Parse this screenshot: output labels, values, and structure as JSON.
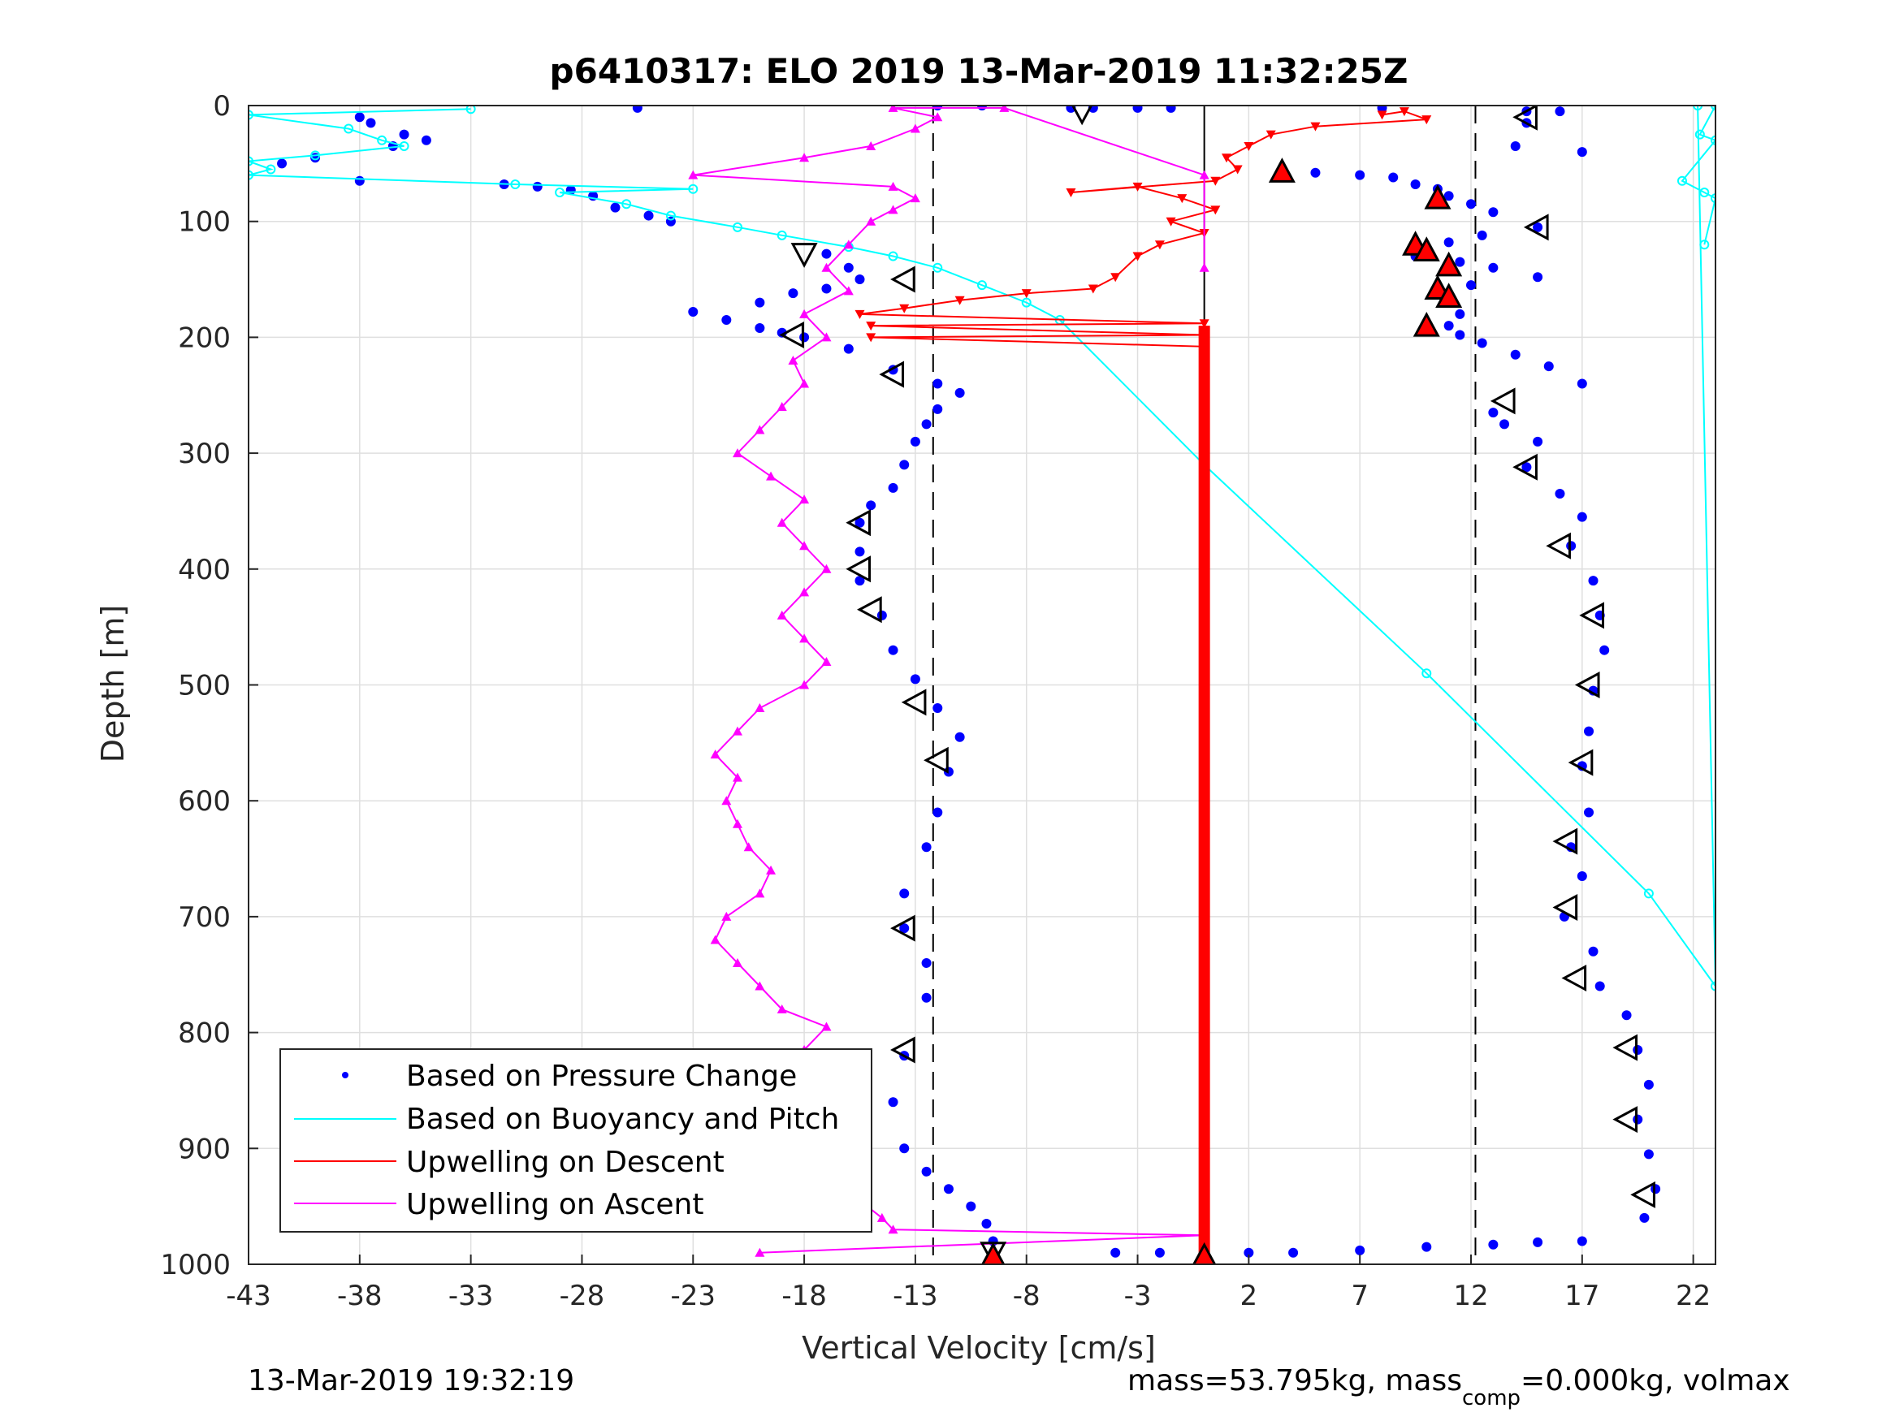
{
  "chart_data": {
    "type": "scatter",
    "title": "p6410317: ELO 2019 13-Mar-2019 11:32:25Z",
    "xlabel": "Vertical Velocity [cm/s]",
    "ylabel": "Depth [m]",
    "xlim": [
      -43,
      23
    ],
    "ylim": [
      0,
      1000
    ],
    "y_reversed": true,
    "grid": true,
    "xticks": [
      -43,
      -38,
      -33,
      -28,
      -23,
      -18,
      -13,
      -8,
      -3,
      2,
      7,
      12,
      17,
      22
    ],
    "yticks": [
      0,
      100,
      200,
      300,
      400,
      500,
      600,
      700,
      800,
      900,
      1000
    ],
    "reference_lines": [
      {
        "x": 0,
        "style": "solid"
      },
      {
        "x": -12.2,
        "style": "dashed"
      },
      {
        "x": 12.2,
        "style": "dashed"
      }
    ],
    "legend": {
      "placement": "bottom-left",
      "entries": [
        {
          "label": "Based on Pressure Change",
          "color": "#0000ff",
          "marker": "dot"
        },
        {
          "label": "Based on Buoyancy and Pitch",
          "color": "#00ffff",
          "marker": "line"
        },
        {
          "label": "Upwelling on Descent",
          "color": "#ff0000",
          "marker": "line"
        },
        {
          "label": "Upwelling on Ascent",
          "color": "#ff00ff",
          "marker": "line"
        }
      ]
    },
    "series": [
      {
        "name": "Based on Pressure Change",
        "color": "#0000ff",
        "points": [
          [
            -25.5,
            2
          ],
          [
            -12,
            0
          ],
          [
            -10,
            0
          ],
          [
            -38,
            10
          ],
          [
            -37.5,
            15
          ],
          [
            -36,
            25
          ],
          [
            -35,
            30
          ],
          [
            -36.5,
            35
          ],
          [
            -40,
            45
          ],
          [
            -41.5,
            50
          ],
          [
            -38,
            65
          ],
          [
            -31.5,
            68
          ],
          [
            -30,
            70
          ],
          [
            -28.5,
            73
          ],
          [
            -27.5,
            78
          ],
          [
            -26.5,
            88
          ],
          [
            -25,
            95
          ],
          [
            -24,
            100
          ],
          [
            -17,
            128
          ],
          [
            -16,
            140
          ],
          [
            -15.5,
            150
          ],
          [
            -17,
            158
          ],
          [
            -18.5,
            162
          ],
          [
            -20,
            170
          ],
          [
            -23,
            178
          ],
          [
            -21.5,
            185
          ],
          [
            -20,
            192
          ],
          [
            -19,
            196
          ],
          [
            -18,
            200
          ],
          [
            -16,
            210
          ],
          [
            -14,
            228
          ],
          [
            -12,
            240
          ],
          [
            -11,
            248
          ],
          [
            -12,
            262
          ],
          [
            -12.5,
            275
          ],
          [
            -13,
            290
          ],
          [
            -13.5,
            310
          ],
          [
            -14,
            330
          ],
          [
            -15,
            345
          ],
          [
            -15.5,
            360
          ],
          [
            -15.5,
            385
          ],
          [
            -15.5,
            410
          ],
          [
            -14.5,
            440
          ],
          [
            -14,
            470
          ],
          [
            -13,
            495
          ],
          [
            -12,
            520
          ],
          [
            -11,
            545
          ],
          [
            -11.5,
            575
          ],
          [
            -12,
            610
          ],
          [
            -12.5,
            640
          ],
          [
            -13.5,
            680
          ],
          [
            -13.5,
            710
          ],
          [
            -12.5,
            740
          ],
          [
            -12.5,
            770
          ],
          [
            -13.5,
            820
          ],
          [
            -14,
            860
          ],
          [
            -13.5,
            900
          ],
          [
            -12.5,
            920
          ],
          [
            -11.5,
            935
          ],
          [
            -10.5,
            950
          ],
          [
            -9.8,
            965
          ],
          [
            -9.5,
            980
          ],
          [
            -9.5,
            990
          ],
          [
            -4,
            990
          ],
          [
            -2,
            990
          ],
          [
            2,
            990
          ],
          [
            4,
            990
          ],
          [
            7,
            988
          ],
          [
            10,
            985
          ],
          [
            13,
            983
          ],
          [
            15,
            981
          ],
          [
            17,
            980
          ],
          [
            -6,
            2
          ],
          [
            -5,
            2
          ],
          [
            -3,
            2
          ],
          [
            -1.5,
            2
          ],
          [
            8,
            2
          ],
          [
            3.5,
            57
          ],
          [
            5,
            58
          ],
          [
            7,
            60
          ],
          [
            8.5,
            62
          ],
          [
            9.5,
            68
          ],
          [
            10.5,
            72
          ],
          [
            11,
            78
          ],
          [
            12,
            85
          ],
          [
            13,
            92
          ],
          [
            15,
            105
          ],
          [
            12.5,
            112
          ],
          [
            11,
            118
          ],
          [
            9.5,
            125
          ],
          [
            9.5,
            130
          ],
          [
            11.5,
            135
          ],
          [
            13,
            140
          ],
          [
            15,
            148
          ],
          [
            12,
            155
          ],
          [
            10.5,
            160
          ],
          [
            11,
            170
          ],
          [
            11.5,
            180
          ],
          [
            11,
            190
          ],
          [
            11.5,
            198
          ],
          [
            12.5,
            205
          ],
          [
            14,
            215
          ],
          [
            15.5,
            225
          ],
          [
            17,
            240
          ],
          [
            13,
            265
          ],
          [
            13.5,
            275
          ],
          [
            15,
            290
          ],
          [
            14.5,
            312
          ],
          [
            16,
            335
          ],
          [
            17,
            355
          ],
          [
            16.5,
            380
          ],
          [
            17.5,
            410
          ],
          [
            17.8,
            440
          ],
          [
            18,
            470
          ],
          [
            17.5,
            505
          ],
          [
            17.3,
            540
          ],
          [
            17,
            570
          ],
          [
            17.3,
            610
          ],
          [
            16.5,
            640
          ],
          [
            17,
            665
          ],
          [
            16.2,
            700
          ],
          [
            17.5,
            730
          ],
          [
            17.8,
            760
          ],
          [
            19,
            785
          ],
          [
            19.5,
            815
          ],
          [
            20,
            845
          ],
          [
            19.5,
            875
          ],
          [
            20,
            905
          ],
          [
            20.3,
            935
          ],
          [
            19.8,
            960
          ],
          [
            14.5,
            15
          ],
          [
            14,
            35
          ],
          [
            17,
            40
          ],
          [
            14.5,
            5
          ],
          [
            16,
            5
          ]
        ]
      },
      {
        "name": "Based on Buoyancy and Pitch",
        "color": "#00ffff",
        "points": [
          [
            -33,
            3
          ],
          [
            -43,
            8
          ],
          [
            -38.5,
            20
          ],
          [
            -37,
            30
          ],
          [
            -36,
            35
          ],
          [
            -40,
            43
          ],
          [
            -43,
            48
          ],
          [
            -42,
            55
          ],
          [
            -43,
            60
          ],
          [
            -31,
            68
          ],
          [
            -23,
            72
          ],
          [
            -29,
            75
          ],
          [
            -26,
            85
          ],
          [
            -24,
            95
          ],
          [
            -21,
            105
          ],
          [
            -19,
            112
          ],
          [
            -16,
            122
          ],
          [
            -14,
            130
          ],
          [
            -12,
            140
          ],
          [
            -10,
            155
          ],
          [
            -8,
            170
          ],
          [
            -6.5,
            185
          ],
          [
            0,
            310
          ],
          [
            10,
            490
          ],
          [
            20,
            680
          ],
          [
            23,
            760
          ],
          [
            22.2,
            0
          ],
          [
            23,
            0
          ],
          [
            22.3,
            25
          ],
          [
            23,
            30
          ],
          [
            21.5,
            65
          ],
          [
            22.5,
            75
          ],
          [
            23,
            80
          ],
          [
            22.5,
            120
          ]
        ]
      },
      {
        "name": "Upwelling on Descent",
        "color": "#ff0000",
        "points": [
          [
            8,
            8
          ],
          [
            9,
            5
          ],
          [
            10,
            12
          ],
          [
            5,
            18
          ],
          [
            3,
            25
          ],
          [
            2,
            35
          ],
          [
            1,
            45
          ],
          [
            1.5,
            55
          ],
          [
            0.5,
            65
          ],
          [
            -6,
            75
          ],
          [
            -3,
            70
          ],
          [
            -1,
            80
          ],
          [
            0.5,
            90
          ],
          [
            -1.5,
            100
          ],
          [
            0,
            110
          ],
          [
            -2,
            120
          ],
          [
            -3,
            130
          ],
          [
            -4,
            148
          ],
          [
            -5,
            158
          ],
          [
            -8,
            162
          ],
          [
            -11,
            168
          ],
          [
            -13.5,
            175
          ],
          [
            -15.5,
            180
          ],
          [
            0,
            188
          ],
          [
            -15,
            190
          ],
          [
            0,
            198
          ],
          [
            -15,
            200
          ],
          [
            0,
            208
          ],
          [
            0,
            1000
          ]
        ]
      },
      {
        "name": "Upwelling on Ascent",
        "color": "#ff00ff",
        "points": [
          [
            -20,
            990
          ],
          [
            0,
            975
          ],
          [
            -14,
            970
          ],
          [
            -14.5,
            960
          ],
          [
            -15.5,
            945
          ],
          [
            -17,
            930
          ],
          [
            -18,
            915
          ],
          [
            -19,
            900
          ],
          [
            -20,
            880
          ],
          [
            -19.5,
            860
          ],
          [
            -20,
            840
          ],
          [
            -18,
            815
          ],
          [
            -17,
            795
          ],
          [
            -19,
            780
          ],
          [
            -20,
            760
          ],
          [
            -21,
            740
          ],
          [
            -22,
            720
          ],
          [
            -21.5,
            700
          ],
          [
            -20,
            680
          ],
          [
            -19.5,
            660
          ],
          [
            -20.5,
            640
          ],
          [
            -21,
            620
          ],
          [
            -21.5,
            600
          ],
          [
            -21,
            580
          ],
          [
            -22,
            560
          ],
          [
            -21,
            540
          ],
          [
            -20,
            520
          ],
          [
            -18,
            500
          ],
          [
            -17,
            480
          ],
          [
            -18,
            460
          ],
          [
            -19,
            440
          ],
          [
            -18,
            420
          ],
          [
            -17,
            400
          ],
          [
            -18,
            380
          ],
          [
            -19,
            360
          ],
          [
            -18,
            340
          ],
          [
            -19.5,
            320
          ],
          [
            -21,
            300
          ],
          [
            -20,
            280
          ],
          [
            -19,
            260
          ],
          [
            -18,
            240
          ],
          [
            -18.5,
            220
          ],
          [
            -17,
            200
          ],
          [
            -18,
            180
          ],
          [
            -16,
            160
          ],
          [
            -17,
            140
          ],
          [
            -16,
            120
          ],
          [
            -15,
            100
          ],
          [
            -14,
            90
          ],
          [
            -13,
            80
          ],
          [
            -14,
            70
          ],
          [
            -23,
            60
          ],
          [
            -18,
            45
          ],
          [
            -15,
            35
          ],
          [
            -13,
            20
          ],
          [
            -12,
            10
          ],
          [
            -14,
            2
          ],
          [
            -9,
            2
          ],
          [
            0,
            60
          ],
          [
            0,
            140
          ]
        ]
      }
    ],
    "special_markers": [
      {
        "type": "triangle-down-open",
        "points": [
          [
            -5.5,
            5
          ],
          [
            -18,
            128
          ],
          [
            -9.5,
            990
          ]
        ]
      },
      {
        "type": "triangle-left-open",
        "points": [
          [
            -13.5,
            150
          ],
          [
            -18.5,
            198
          ],
          [
            -14,
            232
          ],
          [
            -15.5,
            360
          ],
          [
            -15.5,
            400
          ],
          [
            -15,
            435
          ],
          [
            -13,
            515
          ],
          [
            -12,
            565
          ],
          [
            -13.5,
            710
          ],
          [
            -13.5,
            815
          ],
          [
            14.5,
            10
          ],
          [
            15,
            105
          ],
          [
            13.5,
            255
          ],
          [
            14.5,
            312
          ],
          [
            16,
            380
          ],
          [
            17.5,
            440
          ],
          [
            17.3,
            500
          ],
          [
            17,
            567
          ],
          [
            16.3,
            635
          ],
          [
            16.3,
            692
          ],
          [
            16.7,
            753
          ],
          [
            19,
            813
          ],
          [
            19,
            875
          ],
          [
            19.8,
            940
          ]
        ]
      },
      {
        "type": "triangle-up-filled",
        "points": [
          [
            3.5,
            57
          ],
          [
            10.5,
            80
          ],
          [
            9.5,
            120
          ],
          [
            10,
            125
          ],
          [
            11,
            138
          ],
          [
            10.5,
            158
          ],
          [
            11,
            165
          ],
          [
            10,
            190
          ],
          [
            -9.5,
            993
          ],
          [
            0,
            993
          ]
        ]
      }
    ]
  },
  "footer": {
    "timestamp": "13-Mar-2019 19:32:19",
    "mass_text": "mass=53.795kg, mass",
    "mass_sub": "comp",
    "mass_tail": "=0.000kg, volmax"
  }
}
